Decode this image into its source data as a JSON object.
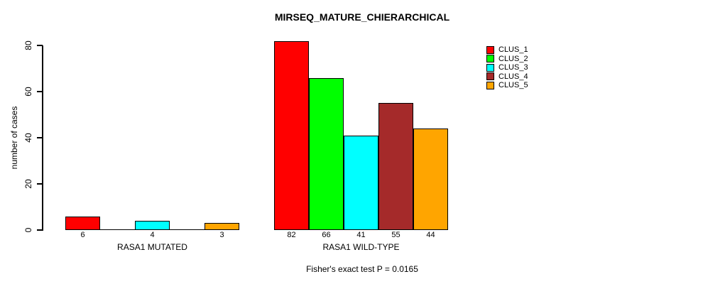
{
  "chart_data": {
    "type": "bar",
    "title": "MIRSEQ_MATURE_CHIERARCHICAL",
    "ylabel": "number of cases",
    "xlabel": "",
    "ylim": [
      0,
      80
    ],
    "yticks": [
      0,
      20,
      40,
      60,
      80
    ],
    "grid": false,
    "legend_position": "right",
    "categories": [
      "RASA1 MUTATED",
      "RASA1 WILD-TYPE"
    ],
    "series": [
      {
        "name": "CLUS_1",
        "color": "#FF0000",
        "values": [
          6,
          82
        ]
      },
      {
        "name": "CLUS_2",
        "color": "#00FF00",
        "values": [
          0,
          66
        ]
      },
      {
        "name": "CLUS_3",
        "color": "#00FFFF",
        "values": [
          4,
          41
        ]
      },
      {
        "name": "CLUS_4",
        "color": "#A52A2A",
        "values": [
          0,
          55
        ]
      },
      {
        "name": "CLUS_5",
        "color": "#FFA500",
        "values": [
          3,
          44
        ]
      }
    ],
    "visible_bar_value_labels": [
      [
        6,
        4,
        3
      ],
      [
        82,
        66,
        41,
        55,
        44
      ]
    ],
    "footnote": "Fisher's exact test P = 0.0165",
    "colors": {
      "bar_border": "#000000",
      "axis": "#000000",
      "text": "#000000",
      "background": "#FFFFFF"
    }
  }
}
